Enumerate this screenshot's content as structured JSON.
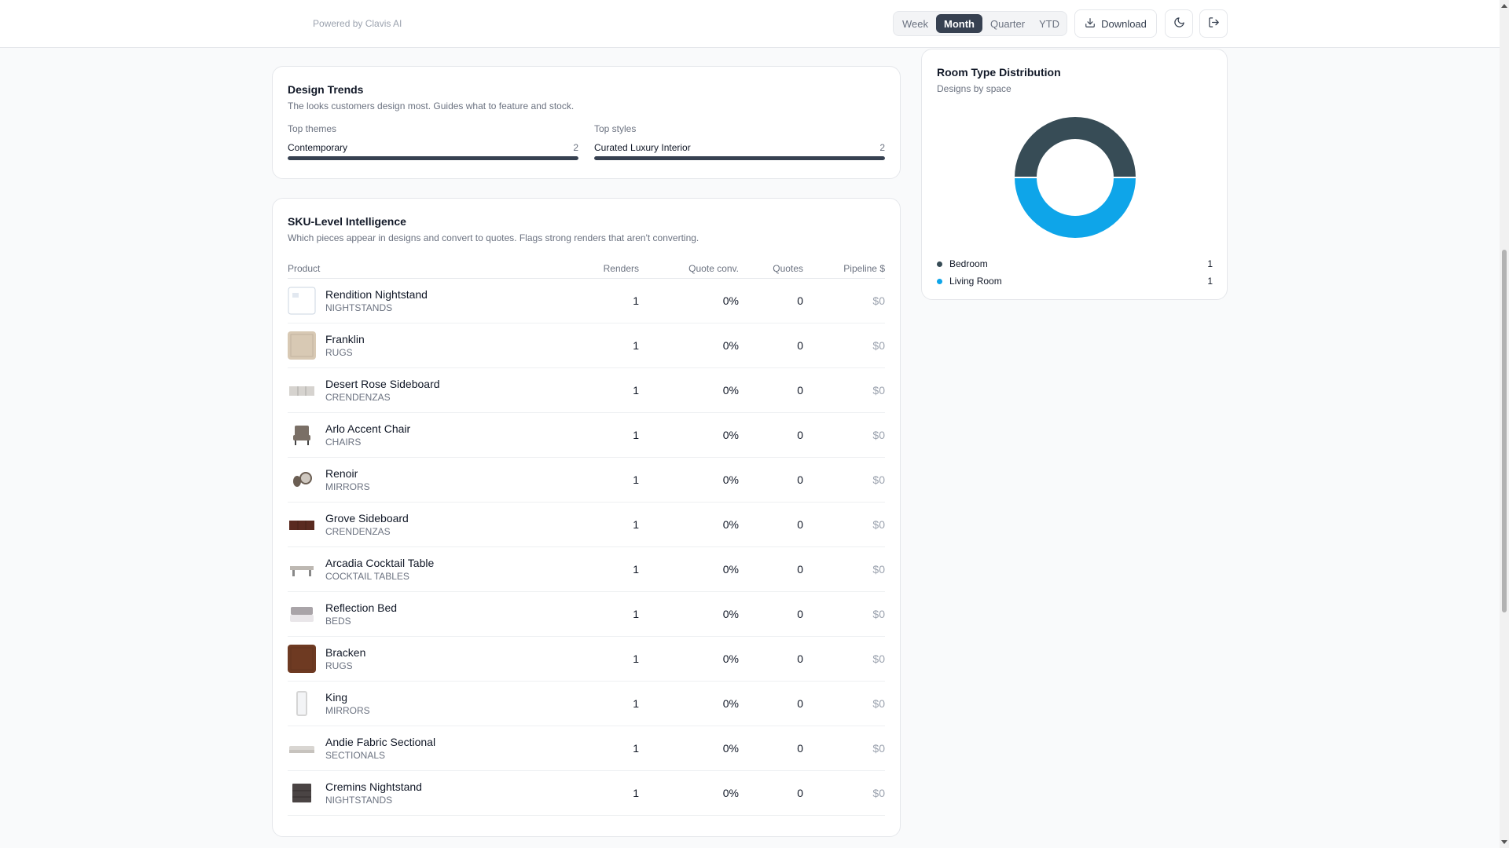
{
  "header": {
    "powered_by": "Powered by Clavis AI",
    "periods": [
      "Week",
      "Month",
      "Quarter",
      "YTD"
    ],
    "active_period": "Month",
    "download_label": "Download"
  },
  "design_trends": {
    "title": "Design Trends",
    "subtitle": "The looks customers design most. Guides what to feature and stock.",
    "themes": {
      "heading": "Top themes",
      "items": [
        {
          "label": "Contemporary",
          "count": "2",
          "fill": 1.0
        }
      ]
    },
    "styles": {
      "heading": "Top styles",
      "items": [
        {
          "label": "Curated Luxury Interior",
          "count": "2",
          "fill": 1.0
        }
      ]
    }
  },
  "sku": {
    "title": "SKU-Level Intelligence",
    "subtitle": "Which pieces appear in designs and convert to quotes. Flags strong renders that aren't converting.",
    "columns": {
      "product": "Product",
      "renders": "Renders",
      "conv": "Quote conv.",
      "quotes": "Quotes",
      "pipeline": "Pipeline $"
    },
    "rows": [
      {
        "name": "Rendition Nightstand",
        "category": "NIGHTSTANDS",
        "renders": "1",
        "conv": "0%",
        "quotes": "0",
        "pipeline": "$0",
        "thumb": "broken-image",
        "color": "#ffffff"
      },
      {
        "name": "Franklin",
        "category": "RUGS",
        "renders": "1",
        "conv": "0%",
        "quotes": "0",
        "pipeline": "$0",
        "thumb": "rug",
        "color": "#d8c9b4"
      },
      {
        "name": "Desert Rose Sideboard",
        "category": "CRENDENZAS",
        "renders": "1",
        "conv": "0%",
        "quotes": "0",
        "pipeline": "$0",
        "thumb": "sideboard",
        "color": "#d6d3cf"
      },
      {
        "name": "Arlo Accent Chair",
        "category": "CHAIRS",
        "renders": "1",
        "conv": "0%",
        "quotes": "0",
        "pipeline": "$0",
        "thumb": "chair",
        "color": "#7a6f66"
      },
      {
        "name": "Renoir",
        "category": "MIRRORS",
        "renders": "1",
        "conv": "0%",
        "quotes": "0",
        "pipeline": "$0",
        "thumb": "round-mirror",
        "color": "#6b5e53"
      },
      {
        "name": "Grove Sideboard",
        "category": "CRENDENZAS",
        "renders": "1",
        "conv": "0%",
        "quotes": "0",
        "pipeline": "$0",
        "thumb": "sideboard",
        "color": "#5a2a20"
      },
      {
        "name": "Arcadia Cocktail Table",
        "category": "COCKTAIL TABLES",
        "renders": "1",
        "conv": "0%",
        "quotes": "0",
        "pipeline": "$0",
        "thumb": "table",
        "color": "#bdb8b2"
      },
      {
        "name": "Reflection Bed",
        "category": "BEDS",
        "renders": "1",
        "conv": "0%",
        "quotes": "0",
        "pipeline": "$0",
        "thumb": "bed",
        "color": "#a9a4a8"
      },
      {
        "name": "Bracken",
        "category": "RUGS",
        "renders": "1",
        "conv": "0%",
        "quotes": "0",
        "pipeline": "$0",
        "thumb": "rug",
        "color": "#6e3a22"
      },
      {
        "name": "King",
        "category": "MIRRORS",
        "renders": "1",
        "conv": "0%",
        "quotes": "0",
        "pipeline": "$0",
        "thumb": "tall-mirror",
        "color": "#d5d5d5"
      },
      {
        "name": "Andie Fabric Sectional",
        "category": "SECTIONALS",
        "renders": "1",
        "conv": "0%",
        "quotes": "0",
        "pipeline": "$0",
        "thumb": "sofa",
        "color": "#d9d6d2"
      },
      {
        "name": "Cremins Nightstand",
        "category": "NIGHTSTANDS",
        "renders": "1",
        "conv": "0%",
        "quotes": "0",
        "pipeline": "$0",
        "thumb": "nightstand",
        "color": "#4a4444"
      }
    ]
  },
  "room_distribution": {
    "title": "Room Type Distribution",
    "subtitle": "Designs by space",
    "chart_data": {
      "type": "pie",
      "categories": [
        "Bedroom",
        "Living Room"
      ],
      "values": [
        1,
        1
      ],
      "colors": [
        "#374c56",
        "#0ea5e9"
      ],
      "title": "Room Type Distribution"
    },
    "legend": [
      {
        "label": "Bedroom",
        "value": "1",
        "color": "#374c56"
      },
      {
        "label": "Living Room",
        "value": "1",
        "color": "#0ea5e9"
      }
    ]
  },
  "icons": {
    "download": "download-icon",
    "theme": "moon-icon",
    "logout": "logout-icon"
  }
}
